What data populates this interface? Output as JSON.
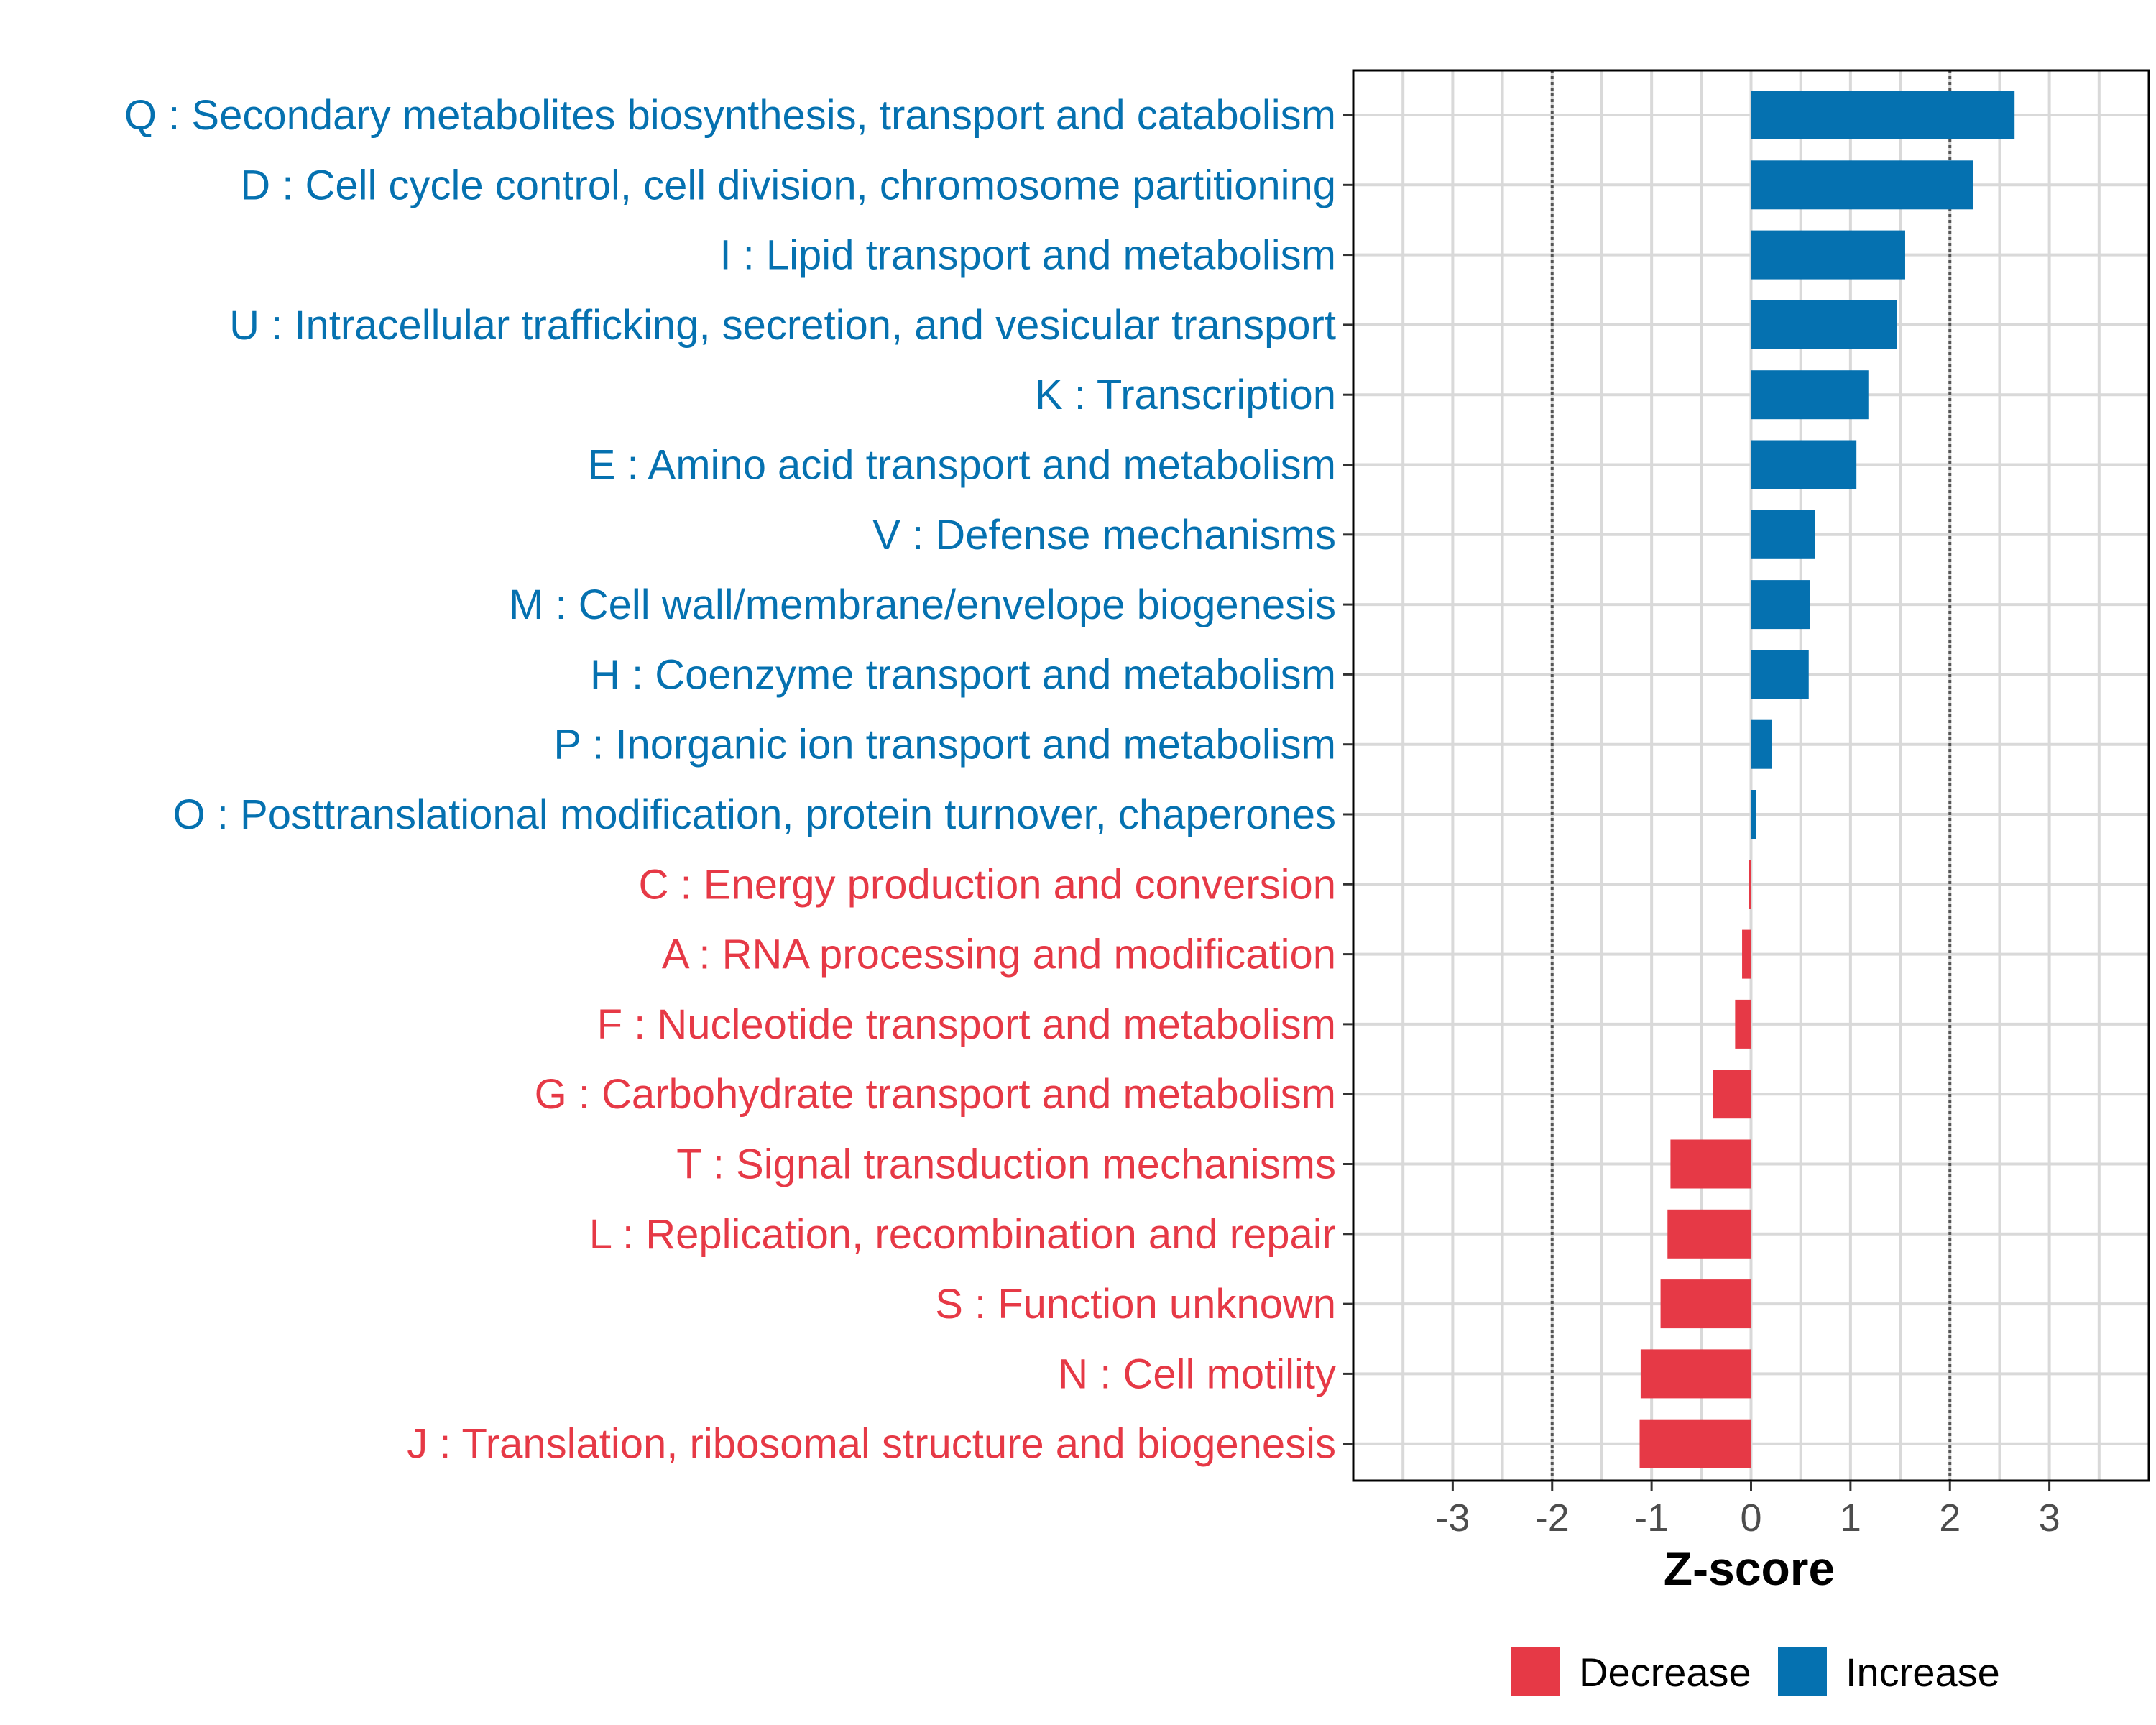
{
  "chart_data": {
    "type": "bar",
    "orientation": "horizontal",
    "title": "",
    "xlabel": "Z-score",
    "ylabel": "",
    "xlim": [
      -4,
      4
    ],
    "xticks": [
      "-3",
      "-2",
      "-1",
      "0",
      "1",
      "2",
      "3"
    ],
    "tick_values": [
      -3,
      -2,
      -1,
      0,
      1,
      2,
      3
    ],
    "reference_lines": [
      -2,
      2
    ],
    "grid": true,
    "legend_position": "bottom",
    "legend": [
      {
        "label": "Decrease",
        "color": "#E63946"
      },
      {
        "label": "Increase",
        "color": "#0571B0"
      }
    ],
    "categories": [
      "Q : Secondary metabolites biosynthesis, transport and catabolism",
      "D : Cell cycle control, cell division, chromosome partitioning",
      "I : Lipid transport and metabolism",
      "U : Intracellular trafficking, secretion, and vesicular transport",
      "K : Transcription",
      "E : Amino acid transport and metabolism",
      "V : Defense mechanisms",
      "M : Cell wall/membrane/envelope biogenesis",
      "H : Coenzyme transport and metabolism",
      "P : Inorganic ion transport and metabolism",
      "O : Posttranslational modification, protein turnover, chaperones",
      "C : Energy production and conversion",
      "A : RNA processing and modification",
      "F : Nucleotide transport and metabolism",
      "G : Carbohydrate transport and metabolism",
      "T : Signal transduction mechanisms",
      "L : Replication, recombination and repair",
      "S : Function unknown",
      "N : Cell motility",
      "J : Translation, ribosomal structure and biogenesis"
    ],
    "values": [
      2.65,
      2.23,
      1.55,
      1.47,
      1.18,
      1.06,
      0.64,
      0.59,
      0.58,
      0.21,
      0.05,
      -0.02,
      -0.09,
      -0.16,
      -0.38,
      -0.81,
      -0.84,
      -0.91,
      -1.11,
      -1.12
    ]
  },
  "colors": {
    "increase": "#0571B0",
    "decrease": "#E63946",
    "grid": "#d9d9d9",
    "axis": "#000000",
    "reference": "#555555"
  }
}
